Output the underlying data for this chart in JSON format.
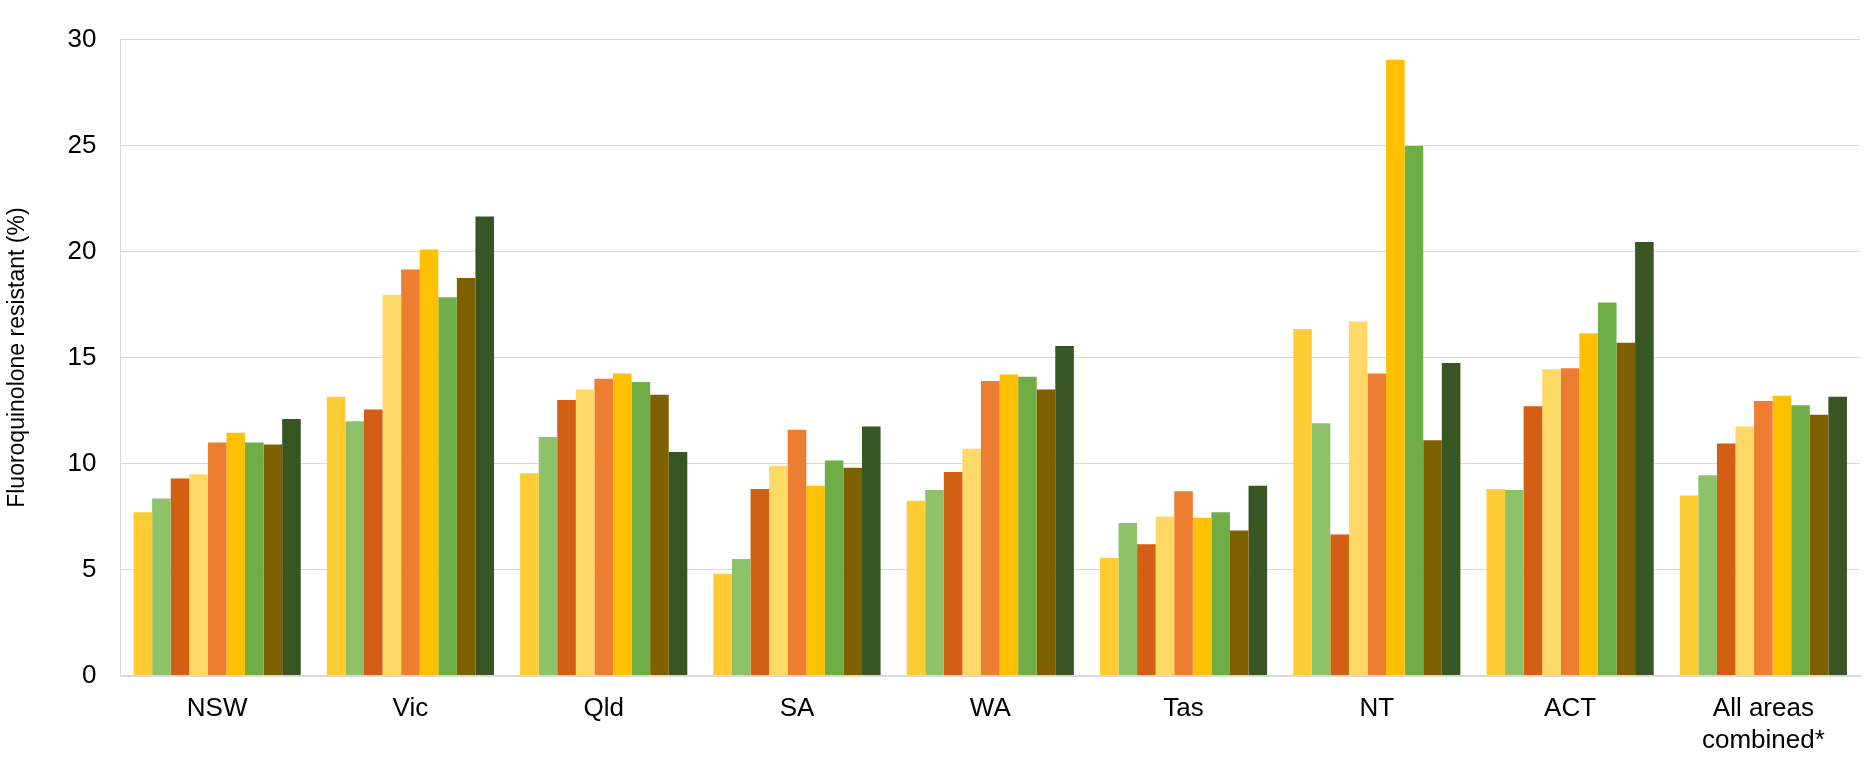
{
  "chart_data": {
    "type": "bar",
    "ylabel": "Fluoroquinolone resistant (%)",
    "categories": [
      "NSW",
      "Vic",
      "Qld",
      "SA",
      "WA",
      "Tas",
      "NT",
      "ACT",
      "All areas combined*"
    ],
    "series": [
      {
        "color": "#ffcd33",
        "values": [
          7.7,
          13.15,
          9.55,
          4.8,
          8.25,
          5.55,
          16.35,
          8.8,
          8.5
        ]
      },
      {
        "color": "#8dc26b",
        "values": [
          8.35,
          12.0,
          11.25,
          5.5,
          8.75,
          7.2,
          11.9,
          8.75,
          9.45
        ]
      },
      {
        "color": "#d35f14",
        "values": [
          9.3,
          12.55,
          13.0,
          8.8,
          9.6,
          6.2,
          6.65,
          12.7,
          10.95
        ]
      },
      {
        "color": "#ffd966",
        "values": [
          9.5,
          17.95,
          13.5,
          9.9,
          10.7,
          7.5,
          16.7,
          14.45,
          11.75
        ]
      },
      {
        "color": "#ed7d31",
        "values": [
          11.0,
          19.15,
          14.0,
          11.6,
          13.9,
          8.7,
          14.25,
          14.5,
          12.95
        ]
      },
      {
        "color": "#ffc000",
        "values": [
          11.45,
          20.1,
          14.25,
          8.95,
          14.2,
          7.45,
          29.05,
          16.15,
          13.2
        ]
      },
      {
        "color": "#70ad47",
        "values": [
          11.0,
          17.85,
          13.85,
          10.15,
          14.1,
          7.7,
          24.98,
          17.6,
          12.75
        ]
      },
      {
        "color": "#7f6000",
        "values": [
          10.9,
          18.75,
          13.25,
          9.8,
          13.5,
          6.85,
          11.1,
          15.7,
          12.3
        ]
      },
      {
        "color": "#375623",
        "values": [
          12.1,
          21.65,
          10.55,
          11.75,
          15.55,
          8.95,
          14.75,
          20.45,
          13.15
        ]
      }
    ],
    "ylim": [
      0,
      30
    ],
    "yticks": [
      0,
      5,
      10,
      15,
      20,
      25,
      30
    ],
    "grid": "y",
    "legend": false
  }
}
